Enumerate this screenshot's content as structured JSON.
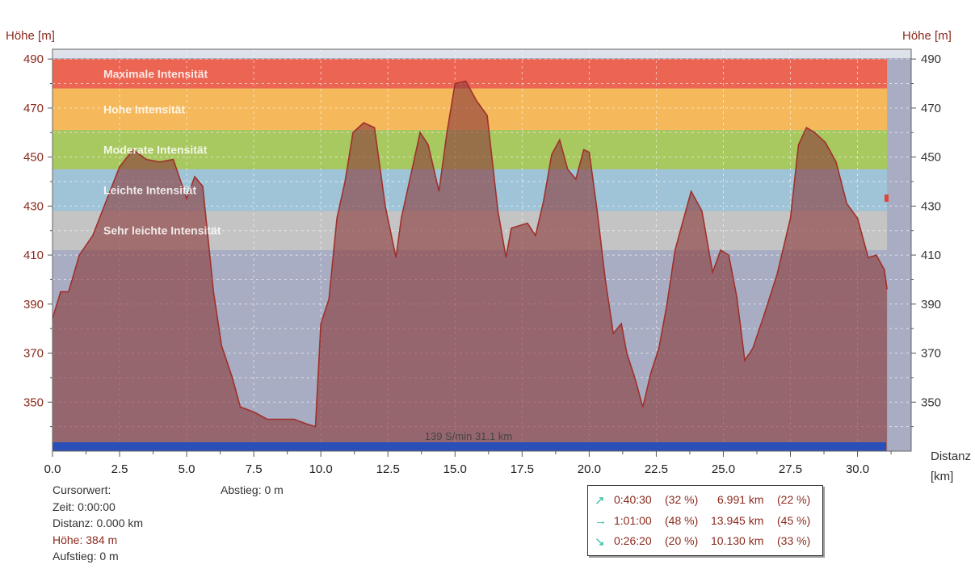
{
  "axes": {
    "left_title": "Höhe [m]",
    "right_title": "Höhe [m]",
    "x_title_line1": "Distanz",
    "x_title_line2": "[km]"
  },
  "cursor": {
    "heading": "Cursorwert:",
    "zeit": "Zeit: 0:00:00",
    "distanz": "Distanz: 0.000 km",
    "hoehe": "Höhe: 384 m",
    "aufstieg": "Aufstieg: 0 m",
    "abstieg": "Abstieg: 0 m"
  },
  "summary": [
    {
      "icon": "arrow-up-right-icon",
      "glyph": "↗",
      "time": "0:40:30",
      "time_pct": "(32 %)",
      "dist": "6.991 km",
      "dist_pct": "(22 %)"
    },
    {
      "icon": "arrow-right-icon",
      "glyph": "→",
      "time": "1:01:00",
      "time_pct": "(48 %)",
      "dist": "13.945 km",
      "dist_pct": "(45 %)"
    },
    {
      "icon": "arrow-down-right-icon",
      "glyph": "↘",
      "time": "0:26:20",
      "time_pct": "(20 %)",
      "dist": "10.130 km",
      "dist_pct": "(33 %)"
    }
  ],
  "chart_data": {
    "type": "area",
    "xlabel": "Distanz [km]",
    "ylabel": "Höhe [m]",
    "xlim": [
      0,
      32
    ],
    "ylim": [
      330,
      494
    ],
    "x_ticks": [
      0,
      2.5,
      5,
      7.5,
      10,
      12.5,
      15,
      17.5,
      20,
      22.5,
      25,
      27.5,
      30
    ],
    "x_tick_labels": [
      "0.0",
      "2.5",
      "5.0",
      "7.5",
      "10.0",
      "12.5",
      "15.0",
      "17.5",
      "20.0",
      "22.5",
      "25.0",
      "27.5",
      "30.0"
    ],
    "y_ticks": [
      350,
      370,
      390,
      410,
      430,
      450,
      470,
      490
    ],
    "y_tick_labels": [
      "350",
      "370",
      "390",
      "410",
      "430",
      "450",
      "470",
      "490"
    ],
    "grid": true,
    "zones": [
      {
        "name": "Maximale Intensität",
        "from": 478,
        "to": 490,
        "color": "#ec6452"
      },
      {
        "name": "Hohe Intensität",
        "from": 461,
        "to": 478,
        "color": "#f5b85a"
      },
      {
        "name": "Moderate Intensität",
        "from": 445,
        "to": 461,
        "color": "#a8c860"
      },
      {
        "name": "Leichte Intensität",
        "from": 428,
        "to": 445,
        "color": "#9fc4d8"
      },
      {
        "name": "Sehr leichte Intensität",
        "from": 412,
        "to": 428,
        "color": "#c4c4c4"
      }
    ],
    "series": [
      {
        "color": "#a0302a",
        "fill": "#8b3a3a",
        "x": [
          0,
          0.3,
          0.6,
          1.0,
          1.5,
          2.0,
          2.5,
          3.0,
          3.5,
          4.0,
          4.5,
          5.0,
          5.3,
          5.6,
          6.0,
          6.3,
          6.7,
          7.0,
          7.5,
          8.0,
          8.5,
          9.0,
          9.5,
          9.8,
          10.0,
          10.3,
          10.6,
          10.9,
          11.2,
          11.6,
          12.0,
          12.4,
          12.8,
          13.0,
          13.4,
          13.7,
          14.0,
          14.4,
          14.7,
          15.0,
          15.4,
          15.8,
          16.2,
          16.6,
          16.9,
          17.1,
          17.4,
          17.7,
          18.0,
          18.3,
          18.6,
          18.9,
          19.2,
          19.5,
          19.8,
          20.0,
          20.3,
          20.6,
          20.9,
          21.2,
          21.4,
          21.7,
          22.0,
          22.3,
          22.6,
          22.9,
          23.2,
          23.5,
          23.8,
          24.2,
          24.6,
          24.9,
          25.2,
          25.5,
          25.8,
          26.1,
          26.5,
          27.0,
          27.5,
          27.8,
          28.1,
          28.4,
          28.8,
          29.2,
          29.6,
          30.0,
          30.4,
          30.7,
          31.0,
          31.1
        ],
        "y": [
          384,
          395,
          395,
          410,
          418,
          432,
          446,
          453,
          449,
          448,
          449,
          433,
          442,
          438,
          395,
          373,
          360,
          348,
          346,
          343,
          343,
          343,
          341,
          340,
          382,
          392,
          425,
          440,
          460,
          464,
          462,
          430,
          409,
          425,
          445,
          460,
          455,
          436,
          460,
          480,
          481,
          473,
          467,
          428,
          409,
          421,
          422,
          423,
          418,
          432,
          451,
          457,
          445,
          441,
          453,
          452,
          428,
          400,
          378,
          382,
          370,
          360,
          348,
          362,
          372,
          390,
          412,
          424,
          436,
          428,
          403,
          412,
          410,
          393,
          367,
          372,
          385,
          402,
          425,
          455,
          462,
          460,
          456,
          448,
          431,
          425,
          409,
          410,
          404,
          396
        ]
      }
    ],
    "annotation": "139 S/min 31.1 km",
    "data_end_x": 31.1
  }
}
